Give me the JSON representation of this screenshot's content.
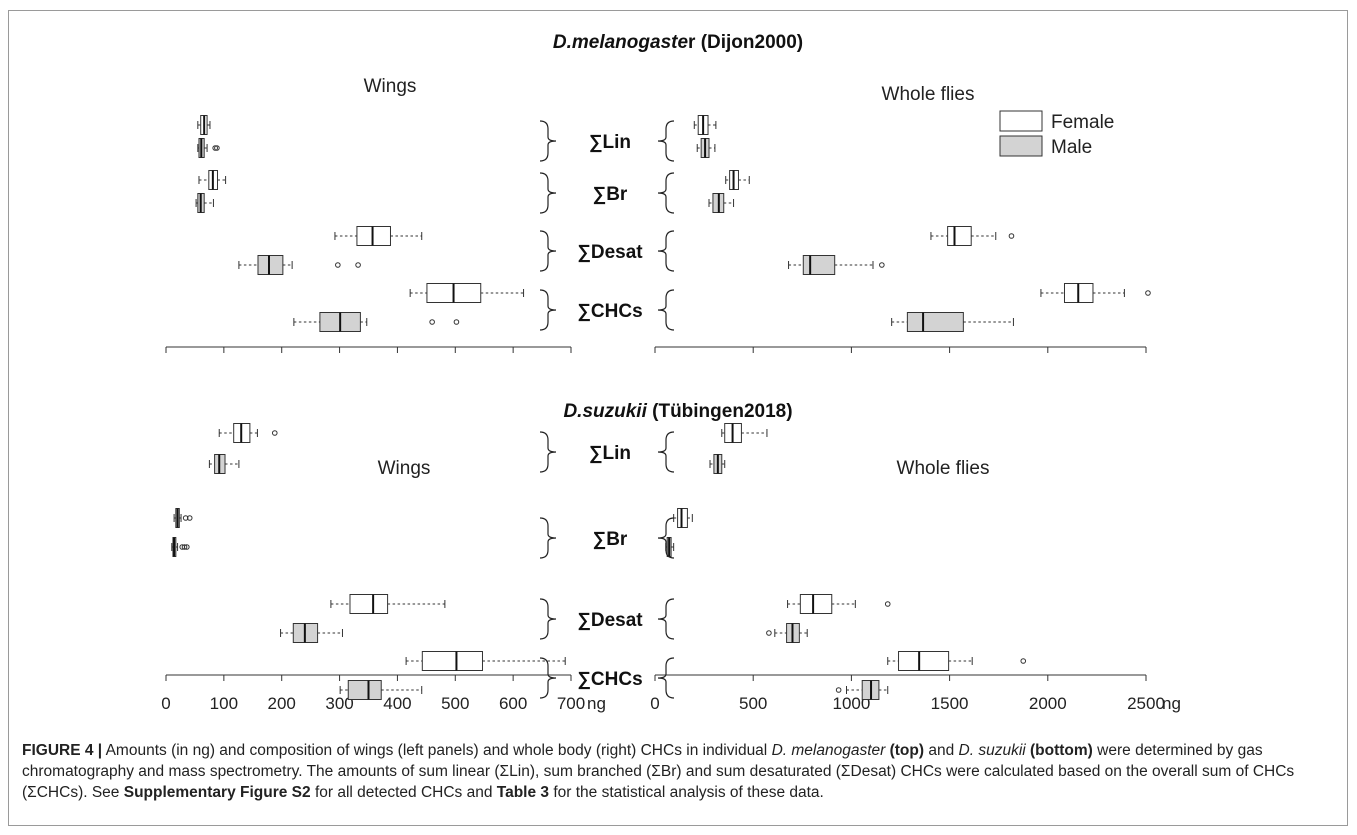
{
  "chart_data": [
    {
      "type": "boxplot",
      "panel": "top",
      "title": "D.melanogaster (Dijon2000)",
      "title_parts": {
        "italic": "D.melanogaste",
        "roman": "r (Dijon2000)"
      },
      "categories": [
        "∑Lin",
        "∑Br",
        "∑Desat",
        "∑CHCs"
      ],
      "legend": {
        "position": "top-right",
        "entries": [
          {
            "name": "Female",
            "color": "#ffffff"
          },
          {
            "name": "Male",
            "color": "#d3d3d3"
          }
        ]
      },
      "subplots": [
        {
          "label": "Wings",
          "unit": "ng",
          "xlim": [
            0,
            700
          ],
          "tick_values": [
            0,
            100,
            200,
            300,
            400,
            500,
            600,
            700
          ],
          "tick_labels_visible": false,
          "boxes": [
            {
              "category": "∑Lin",
              "sex": "Female",
              "min": 55,
              "q1": 60,
              "median": 66,
              "q3": 71,
              "max": 76,
              "outliers": []
            },
            {
              "category": "∑Lin",
              "sex": "Male",
              "min": 55,
              "q1": 57,
              "median": 61,
              "q3": 66,
              "max": 71,
              "outliers": [
                85,
                88
              ]
            },
            {
              "category": "∑Br",
              "sex": "Female",
              "min": 57,
              "q1": 74,
              "median": 81,
              "q3": 89,
              "max": 103,
              "outliers": []
            },
            {
              "category": "∑Br",
              "sex": "Male",
              "min": 52,
              "q1": 55,
              "median": 60,
              "q3": 66,
              "max": 82,
              "outliers": []
            },
            {
              "category": "∑Desat",
              "sex": "Female",
              "min": 292,
              "q1": 330,
              "median": 357,
              "q3": 388,
              "max": 442,
              "outliers": []
            },
            {
              "category": "∑Desat",
              "sex": "Male",
              "min": 126,
              "q1": 159,
              "median": 178,
              "q3": 202,
              "max": 218,
              "outliers": [
                297,
                332
              ]
            },
            {
              "category": "∑CHCs",
              "sex": "Female",
              "min": 422,
              "q1": 451,
              "median": 497,
              "q3": 544,
              "max": 618,
              "outliers": []
            },
            {
              "category": "∑CHCs",
              "sex": "Male",
              "min": 221,
              "q1": 266,
              "median": 301,
              "q3": 336,
              "max": 347,
              "outliers": [
                460,
                502
              ]
            }
          ]
        },
        {
          "label": "Whole flies",
          "unit": "ng",
          "xlim": [
            0,
            2500
          ],
          "tick_values": [
            0,
            500,
            1000,
            1500,
            2000,
            2500
          ],
          "tick_labels_visible": false,
          "boxes": [
            {
              "category": "∑Lin",
              "sex": "Female",
              "min": 200,
              "q1": 220,
              "median": 245,
              "q3": 270,
              "max": 310,
              "outliers": []
            },
            {
              "category": "∑Lin",
              "sex": "Male",
              "min": 215,
              "q1": 235,
              "median": 255,
              "q3": 275,
              "max": 305,
              "outliers": []
            },
            {
              "category": "∑Br",
              "sex": "Female",
              "min": 360,
              "q1": 380,
              "median": 400,
              "q3": 425,
              "max": 480,
              "outliers": []
            },
            {
              "category": "∑Br",
              "sex": "Male",
              "min": 275,
              "q1": 295,
              "median": 325,
              "q3": 350,
              "max": 400,
              "outliers": []
            },
            {
              "category": "∑Desat",
              "sex": "Female",
              "min": 1405,
              "q1": 1490,
              "median": 1525,
              "q3": 1610,
              "max": 1735,
              "outliers": [
                1815
              ]
            },
            {
              "category": "∑Desat",
              "sex": "Male",
              "min": 680,
              "q1": 755,
              "median": 790,
              "q3": 915,
              "max": 1110,
              "outliers": [
                1155
              ]
            },
            {
              "category": "∑CHCs",
              "sex": "Female",
              "min": 1965,
              "q1": 2085,
              "median": 2155,
              "q3": 2230,
              "max": 2390,
              "outliers": [
                2510
              ]
            },
            {
              "category": "∑CHCs",
              "sex": "Male",
              "min": 1205,
              "q1": 1285,
              "median": 1365,
              "q3": 1570,
              "max": 1825,
              "outliers": []
            }
          ]
        }
      ]
    },
    {
      "type": "boxplot",
      "panel": "bottom",
      "title": "D.suzukii (Tübingen2018)",
      "title_parts": {
        "italic": "D.suzukii",
        "roman": " (Tübingen2018)"
      },
      "categories": [
        "∑Lin",
        "∑Br",
        "∑Desat",
        "∑CHCs"
      ],
      "subplots": [
        {
          "label": "Wings",
          "unit": "ng",
          "xlim": [
            0,
            700
          ],
          "tick_values": [
            0,
            100,
            200,
            300,
            400,
            500,
            600,
            700
          ],
          "tick_labels": [
            "0",
            "100",
            "200",
            "300",
            "400",
            "500",
            "600",
            "700"
          ],
          "boxes": [
            {
              "category": "∑Lin",
              "sex": "Female",
              "min": 92,
              "q1": 117,
              "median": 130,
              "q3": 145,
              "max": 158,
              "outliers": [
                188
              ]
            },
            {
              "category": "∑Lin",
              "sex": "Male",
              "min": 75,
              "q1": 84,
              "median": 92,
              "q3": 102,
              "max": 126,
              "outliers": []
            },
            {
              "category": "∑Br",
              "sex": "Female",
              "min": 14,
              "q1": 17,
              "median": 20,
              "q3": 23,
              "max": 26,
              "outliers": [
                34,
                41
              ]
            },
            {
              "category": "∑Br",
              "sex": "Male",
              "min": 10,
              "q1": 12,
              "median": 14,
              "q3": 17,
              "max": 20,
              "outliers": [
                28,
                32,
                36
              ]
            },
            {
              "category": "∑Desat",
              "sex": "Female",
              "min": 285,
              "q1": 318,
              "median": 358,
              "q3": 383,
              "max": 482,
              "outliers": []
            },
            {
              "category": "∑Desat",
              "sex": "Male",
              "min": 198,
              "q1": 220,
              "median": 240,
              "q3": 262,
              "max": 305,
              "outliers": []
            },
            {
              "category": "∑CHCs",
              "sex": "Female",
              "min": 415,
              "q1": 443,
              "median": 502,
              "q3": 547,
              "max": 690,
              "outliers": []
            },
            {
              "category": "∑CHCs",
              "sex": "Male",
              "min": 301,
              "q1": 315,
              "median": 350,
              "q3": 372,
              "max": 442,
              "outliers": []
            }
          ]
        },
        {
          "label": "Whole flies",
          "unit": "ng",
          "xlim": [
            0,
            2500
          ],
          "tick_values": [
            0,
            500,
            1000,
            1500,
            2000,
            2500
          ],
          "tick_labels": [
            "0",
            "500",
            "1000",
            "1500",
            "2000",
            "2500"
          ],
          "boxes": [
            {
              "category": "∑Lin",
              "sex": "Female",
              "min": 340,
              "q1": 355,
              "median": 395,
              "q3": 440,
              "max": 570,
              "outliers": []
            },
            {
              "category": "∑Lin",
              "sex": "Male",
              "min": 280,
              "q1": 300,
              "median": 320,
              "q3": 340,
              "max": 355,
              "outliers": []
            },
            {
              "category": "∑Br",
              "sex": "Female",
              "min": 95,
              "q1": 115,
              "median": 135,
              "q3": 165,
              "max": 190,
              "outliers": []
            },
            {
              "category": "∑Br",
              "sex": "Male",
              "min": 55,
              "q1": 62,
              "median": 72,
              "q3": 82,
              "max": 95,
              "outliers": []
            },
            {
              "category": "∑Desat",
              "sex": "Female",
              "min": 675,
              "q1": 740,
              "median": 805,
              "q3": 900,
              "max": 1020,
              "outliers": [
                1185
              ]
            },
            {
              "category": "∑Desat",
              "sex": "Male",
              "min": 610,
              "q1": 670,
              "median": 700,
              "q3": 735,
              "max": 775,
              "outliers": [
                580
              ]
            },
            {
              "category": "∑CHCs",
              "sex": "Female",
              "min": 1185,
              "q1": 1240,
              "median": 1345,
              "q3": 1495,
              "max": 1615,
              "outliers": [
                1875
              ]
            },
            {
              "category": "∑CHCs",
              "sex": "Male",
              "min": 975,
              "q1": 1055,
              "median": 1100,
              "q3": 1140,
              "max": 1185,
              "outliers": [
                935
              ]
            }
          ]
        }
      ]
    }
  ],
  "caption": {
    "figure_label": "FIGURE 4 |",
    "parts": [
      {
        "t": " Amounts (in ng) and composition of wings (left panels) and whole body (right) CHCs in individual ",
        "s": "n"
      },
      {
        "t": "D. melanogaster",
        "s": "i"
      },
      {
        "t": " ",
        "s": "n"
      },
      {
        "t": "(top)",
        "s": "b"
      },
      {
        "t": " and ",
        "s": "n"
      },
      {
        "t": "D. suzukii",
        "s": "i"
      },
      {
        "t": " ",
        "s": "n"
      },
      {
        "t": "(bottom)",
        "s": "b"
      },
      {
        "t": " were determined by gas chromatography and mass spectrometry. The amounts of sum linear (ΣLin), sum branched (ΣBr) and sum desaturated (ΣDesat) CHCs were calculated based on the overall sum of CHCs (ΣCHCs). See ",
        "s": "n"
      },
      {
        "t": "Supplementary Figure S2",
        "s": "b"
      },
      {
        "t": " for all detected CHCs and ",
        "s": "n"
      },
      {
        "t": "Table 3",
        "s": "b"
      },
      {
        "t": " for the statistical analysis of these data.",
        "s": "n"
      }
    ]
  }
}
